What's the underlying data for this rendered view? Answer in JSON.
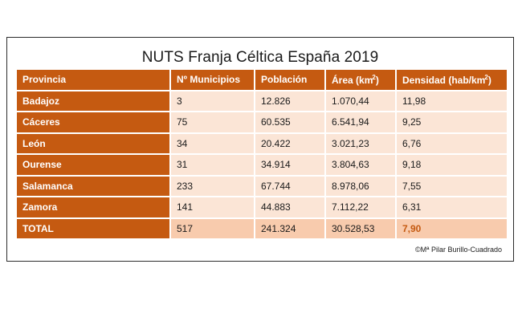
{
  "title": "NUTS Franja Céltica España 2019",
  "headers": {
    "provincia": "Provincia",
    "municipios": "Nº Municipios",
    "poblacion": "Población",
    "area": "Área (km",
    "area_suffix": ")",
    "densidad": "Densidad (hab/km",
    "densidad_suffix": ")",
    "superscript": "2"
  },
  "rows": [
    {
      "provincia": "Badajoz",
      "municipios": "3",
      "poblacion": "12.826",
      "area": "1.070,44",
      "densidad": "11,98"
    },
    {
      "provincia": "Cáceres",
      "municipios": "75",
      "poblacion": "60.535",
      "area": "6.541,94",
      "densidad": "9,25"
    },
    {
      "provincia": "León",
      "municipios": "34",
      "poblacion": "20.422",
      "area": "3.021,23",
      "densidad": "6,76"
    },
    {
      "provincia": "Ourense",
      "municipios": "31",
      "poblacion": "34.914",
      "area": "3.804,63",
      "densidad": "9,18"
    },
    {
      "provincia": "Salamanca",
      "municipios": "233",
      "poblacion": "67.744",
      "area": "8.978,06",
      "densidad": "7,55"
    },
    {
      "provincia": "Zamora",
      "municipios": "141",
      "poblacion": "44.883",
      "area": "7.112,22",
      "densidad": "6,31"
    }
  ],
  "total": {
    "provincia": "TOTAL",
    "municipios": "517",
    "poblacion": "241.324",
    "area": "30.528,53",
    "densidad": "7,90"
  },
  "credit": "©Mª Pilar Burillo-Cuadrado",
  "colors": {
    "header": "#c55a11",
    "row_bg": "#fbe5d6",
    "total_bg": "#f8cbad",
    "highlight": "#c55a11"
  }
}
